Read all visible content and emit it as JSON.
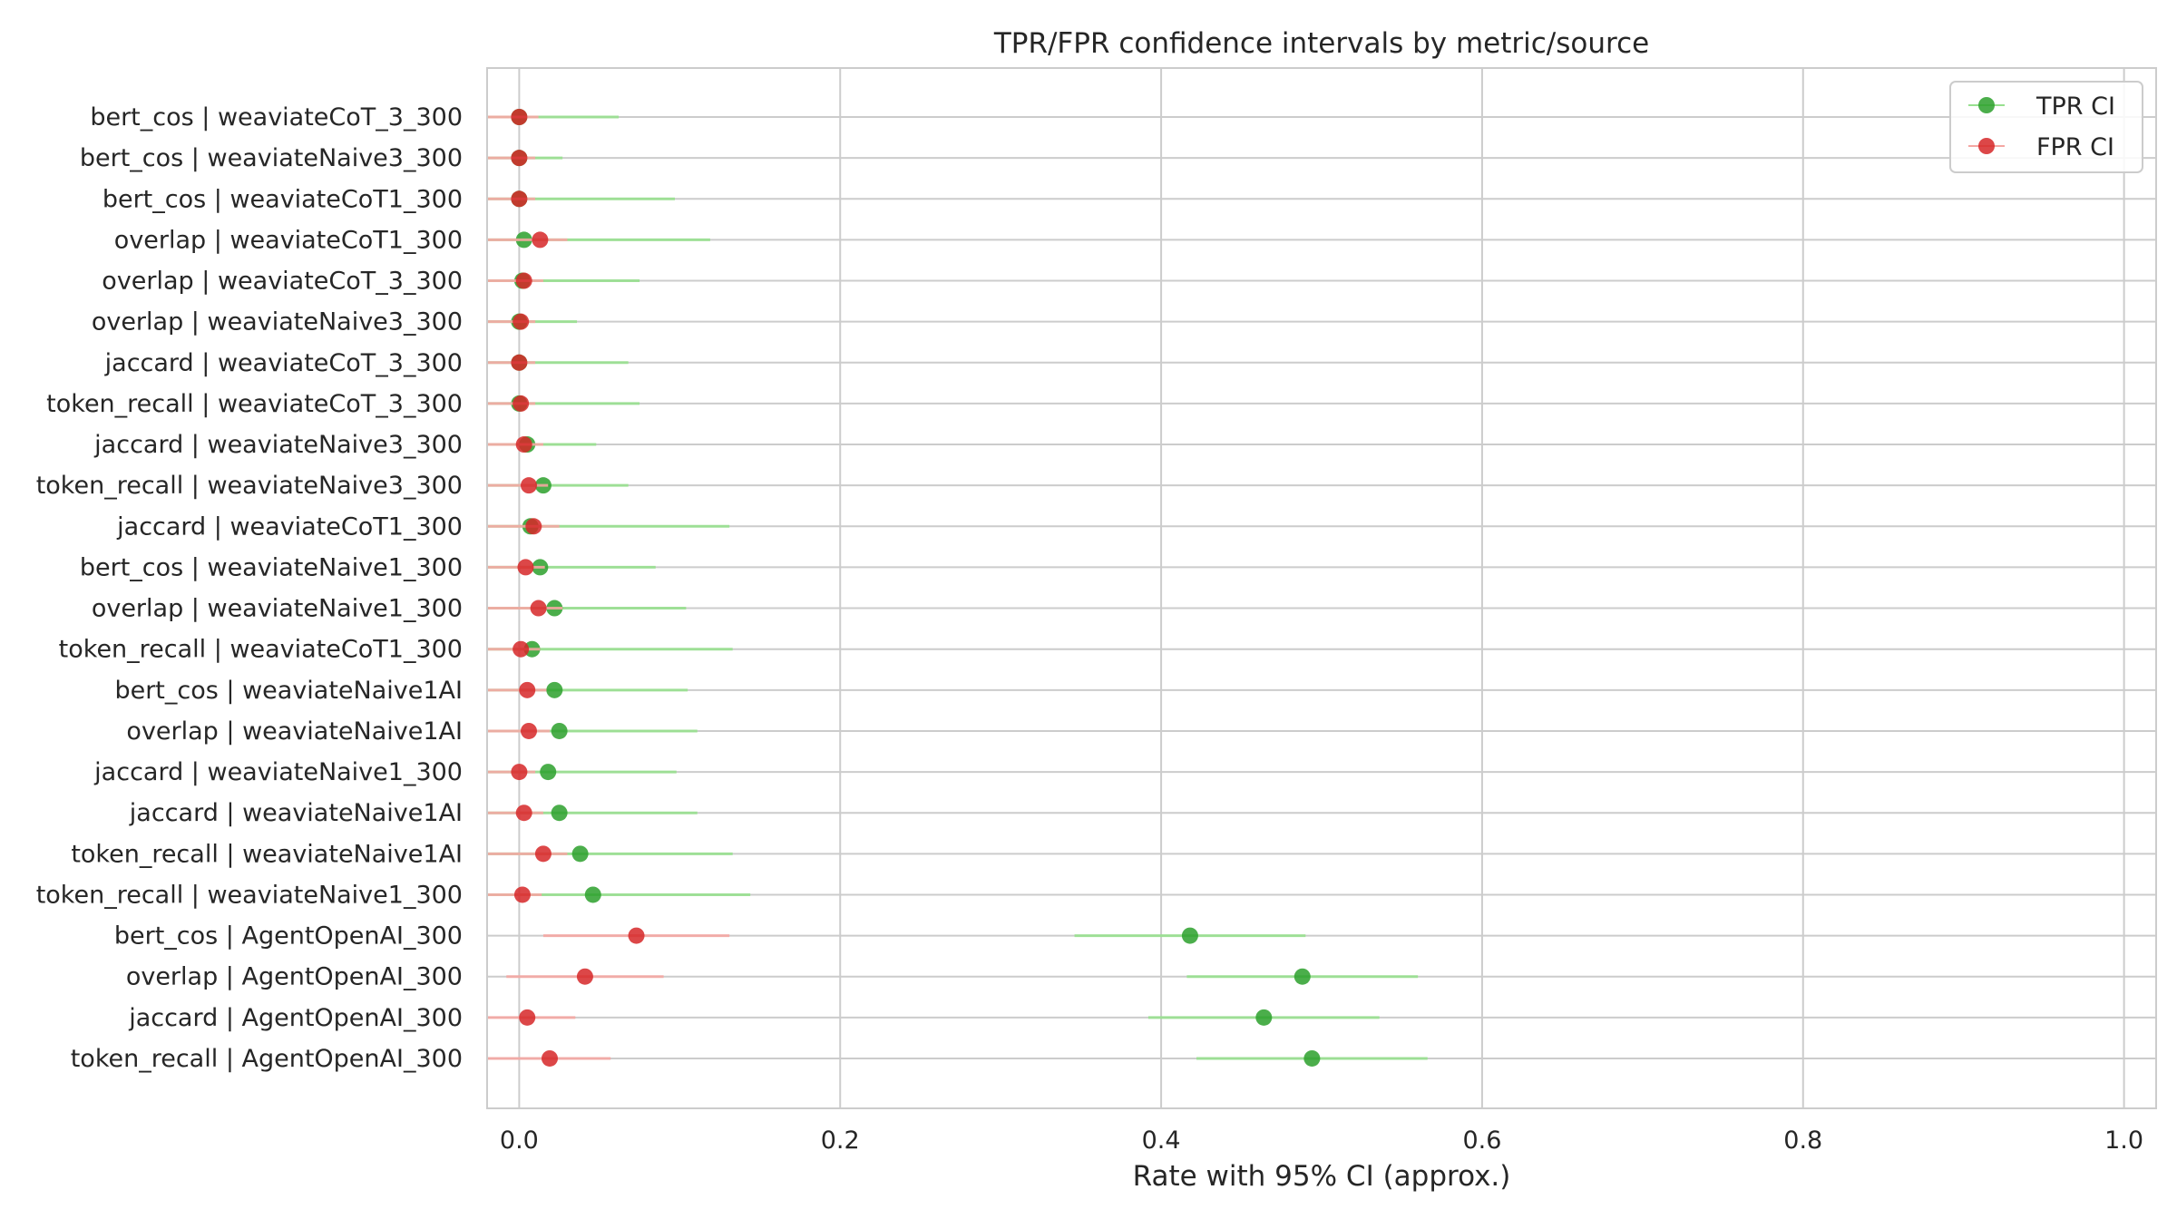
{
  "chart_data": {
    "type": "scatter",
    "title": "TPR/FPR confidence intervals by metric/source",
    "xlabel": "Rate with 95% CI (approx.)",
    "ylabel": "",
    "xlim": [
      -0.02,
      1.02
    ],
    "xticks": [
      0.0,
      0.2,
      0.4,
      0.6,
      0.8,
      1.0
    ],
    "xtick_labels": [
      "0.0",
      "0.2",
      "0.4",
      "0.6",
      "0.8",
      "1.0"
    ],
    "grid": true,
    "legend_position": "top-right",
    "categories": [
      "bert_cos | weaviateCoT_3_300",
      "bert_cos | weaviateNaive3_300",
      "bert_cos | weaviateCoT1_300",
      "overlap | weaviateCoT1_300",
      "overlap | weaviateCoT_3_300",
      "overlap | weaviateNaive3_300",
      "jaccard | weaviateCoT_3_300",
      "token_recall | weaviateCoT_3_300",
      "jaccard | weaviateNaive3_300",
      "token_recall | weaviateNaive3_300",
      "jaccard | weaviateCoT1_300",
      "bert_cos | weaviateNaive1_300",
      "overlap | weaviateNaive1_300",
      "token_recall | weaviateCoT1_300",
      "bert_cos | weaviateNaive1AI",
      "overlap | weaviateNaive1AI",
      "jaccard | weaviateNaive1_300",
      "jaccard | weaviateNaive1AI",
      "token_recall | weaviateNaive1AI",
      "token_recall | weaviateNaive1_300",
      "bert_cos | AgentOpenAI_300",
      "overlap | AgentOpenAI_300",
      "jaccard | AgentOpenAI_300",
      "token_recall | AgentOpenAI_300"
    ],
    "series": [
      {
        "name": "TPR CI",
        "color": "#2ca02c",
        "line_color": "#98e08f",
        "values": [
          0.0,
          0.0,
          0.0,
          0.003,
          0.002,
          0.0,
          0.0,
          0.0,
          0.005,
          0.015,
          0.007,
          0.013,
          0.022,
          0.008,
          0.022,
          0.025,
          0.018,
          0.025,
          0.038,
          0.046,
          0.418,
          0.488,
          0.464,
          0.494
        ],
        "lower": [
          -0.02,
          -0.02,
          -0.02,
          -0.02,
          -0.02,
          -0.02,
          -0.02,
          -0.02,
          -0.02,
          -0.02,
          -0.02,
          -0.02,
          -0.02,
          -0.02,
          -0.02,
          -0.02,
          -0.02,
          -0.02,
          -0.02,
          -0.02,
          0.346,
          0.416,
          0.392,
          0.422
        ],
        "upper": [
          0.062,
          0.027,
          0.097,
          0.119,
          0.075,
          0.036,
          0.068,
          0.075,
          0.048,
          0.068,
          0.131,
          0.085,
          0.104,
          0.133,
          0.105,
          0.111,
          0.098,
          0.111,
          0.133,
          0.144,
          0.49,
          0.56,
          0.536,
          0.566
        ]
      },
      {
        "name": "FPR CI",
        "color": "#d62728",
        "line_color": "#f4a7a3",
        "values": [
          0.0,
          0.0,
          0.0,
          0.013,
          0.003,
          0.001,
          0.0,
          0.001,
          0.003,
          0.006,
          0.009,
          0.004,
          0.012,
          0.001,
          0.005,
          0.006,
          0.0,
          0.003,
          0.015,
          0.002,
          0.073,
          0.041,
          0.005,
          0.019
        ],
        "lower": [
          -0.02,
          -0.02,
          -0.02,
          -0.02,
          -0.02,
          -0.02,
          -0.02,
          -0.02,
          -0.02,
          -0.02,
          -0.02,
          -0.02,
          -0.02,
          -0.02,
          -0.02,
          -0.02,
          -0.02,
          -0.02,
          -0.02,
          -0.02,
          0.015,
          -0.008,
          -0.02,
          -0.02
        ],
        "upper": [
          0.012,
          0.01,
          0.01,
          0.03,
          0.015,
          0.01,
          0.01,
          0.01,
          0.015,
          0.018,
          0.025,
          0.016,
          0.027,
          0.013,
          0.017,
          0.019,
          0.01,
          0.015,
          0.03,
          0.014,
          0.131,
          0.09,
          0.035,
          0.057
        ]
      }
    ]
  }
}
